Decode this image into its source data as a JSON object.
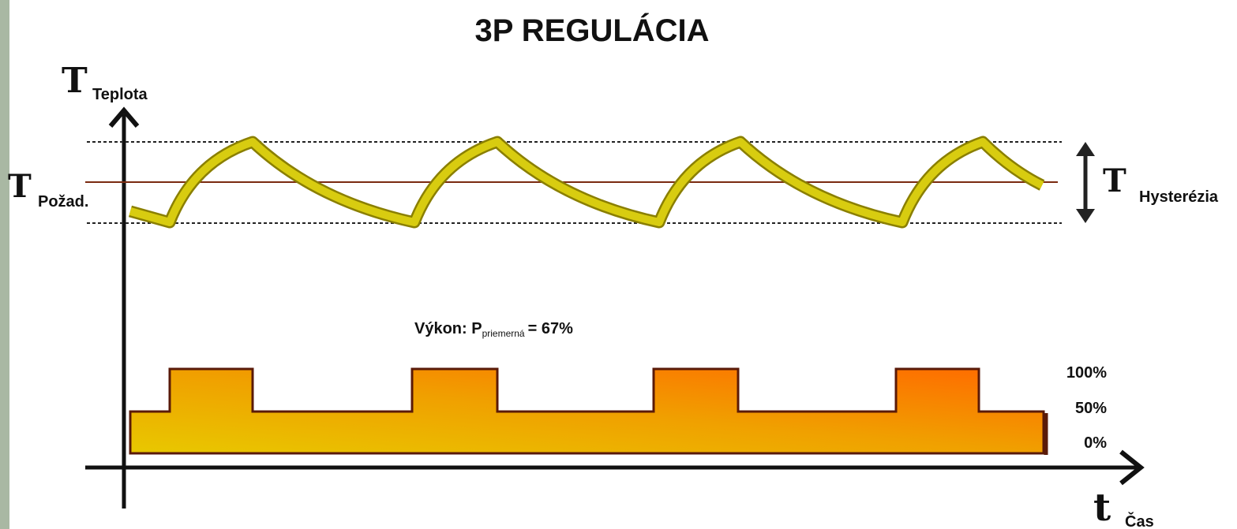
{
  "title": "3P REGULÁCIA",
  "y_axis": {
    "symbol": "T",
    "label": "Teplota"
  },
  "setpoint": {
    "symbol": "T",
    "label": "Požad."
  },
  "hysteresis": {
    "symbol": "T",
    "label": "Hysterézia"
  },
  "power": {
    "prefix": "Výkon: P",
    "subscript": "priemerná",
    "suffix": "= 67%"
  },
  "levels": [
    "100%",
    "50%",
    "0%"
  ],
  "x_axis": {
    "symbol": "t",
    "label": "Čas"
  }
}
